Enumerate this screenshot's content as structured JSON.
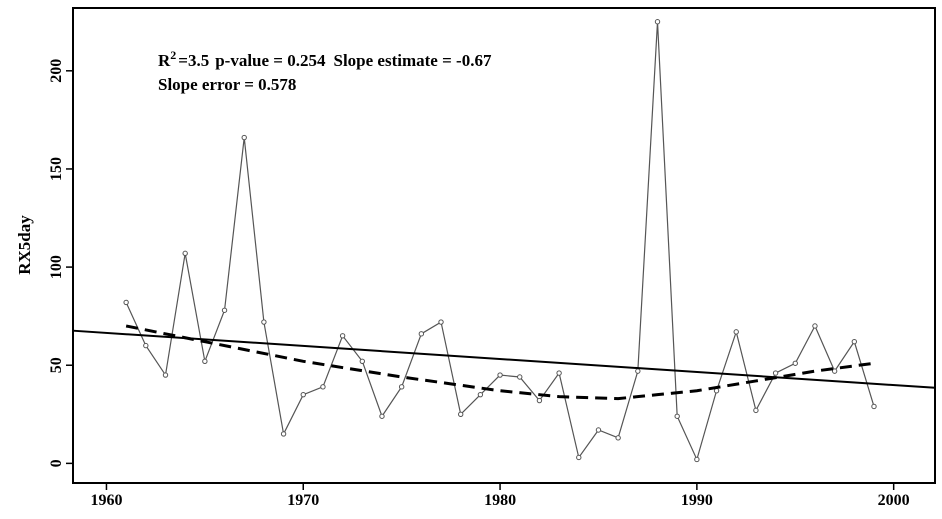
{
  "chart_data": {
    "type": "line",
    "y_label": "RX5day",
    "annotations": [
      "R",
      "2",
      "=3.5",
      "p-value = 0.254",
      "Slope estimate = -0.67",
      "Slope error = 0.578"
    ],
    "xlim": [
      1958.3,
      2002.1
    ],
    "xticks": [
      1960,
      1970,
      1980,
      1990,
      2000
    ],
    "ylim": [
      -10,
      232
    ],
    "yticks": [
      0,
      50,
      100,
      150,
      200
    ],
    "series": [
      {
        "color": "#555555",
        "style": "solid",
        "width": 1.2,
        "markers": true,
        "x": [
          1961,
          1962,
          1963,
          1964,
          1965,
          1966,
          1967,
          1968,
          1969,
          1970,
          1971,
          1972,
          1973,
          1974,
          1975,
          1976,
          1977,
          1978,
          1979,
          1980,
          1981,
          1982,
          1983,
          1984,
          1985,
          1986,
          1987,
          1988,
          1989,
          1990,
          1991,
          1992,
          1993,
          1994,
          1995,
          1996,
          1997,
          1998,
          1999
        ],
        "values": [
          82,
          60,
          45,
          107,
          52,
          78,
          166,
          72,
          15,
          35,
          39,
          65,
          52,
          24,
          39,
          66,
          72,
          25,
          35,
          45,
          44,
          32,
          46,
          3,
          17,
          13,
          47,
          225,
          24,
          2,
          37,
          67,
          27,
          46,
          51,
          70,
          47,
          62,
          29
        ]
      },
      {
        "color": "#000000",
        "style": "solid",
        "width": 2,
        "markers": false,
        "x": [
          1958.3,
          2002.1
        ],
        "values": [
          67.6,
          38.5
        ]
      },
      {
        "color": "#000000",
        "style": "dashed",
        "width": 3,
        "markers": false,
        "x": [
          1961,
          1965,
          1970,
          1975,
          1980,
          1983,
          1986,
          1988,
          1990,
          1993,
          1996,
          1999
        ],
        "values": [
          70,
          62,
          52,
          44,
          37,
          34,
          33,
          35,
          37,
          42,
          47,
          51
        ]
      }
    ]
  }
}
